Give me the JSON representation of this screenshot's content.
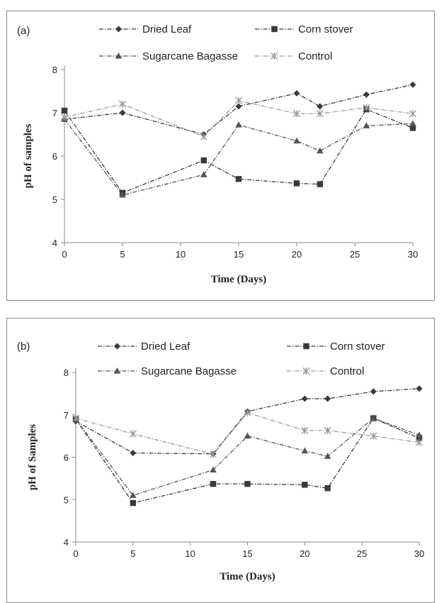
{
  "chart_data": [
    {
      "type": "line",
      "panel_label": "(a)",
      "xlabel": "Time (Days)",
      "ylabel": "pH of samples",
      "xlim": [
        0,
        30
      ],
      "ylim": [
        4,
        8
      ],
      "xticks": [
        0,
        5,
        10,
        15,
        20,
        25,
        30
      ],
      "yticks": [
        4,
        5,
        6,
        7,
        8
      ],
      "legend_position": "top",
      "x": [
        0,
        5,
        12,
        15,
        20,
        22,
        26,
        30
      ],
      "series": [
        {
          "name": "Dried Leaf",
          "marker": "diamond",
          "color": "#3a3a3a",
          "values": [
            6.85,
            7.0,
            6.5,
            7.15,
            7.45,
            7.15,
            7.42,
            7.65
          ]
        },
        {
          "name": "Corn stover",
          "marker": "square",
          "color": "#3a3a3a",
          "values": [
            7.05,
            5.15,
            5.9,
            5.47,
            5.37,
            5.35,
            7.08,
            6.65
          ]
        },
        {
          "name": "Sugarcane Bagasse",
          "marker": "triangle",
          "color": "#555555",
          "values": [
            6.85,
            5.1,
            5.57,
            6.72,
            6.35,
            6.12,
            6.7,
            6.75
          ]
        },
        {
          "name": "Control",
          "marker": "star",
          "color": "#9a9a9a",
          "values": [
            6.9,
            7.2,
            6.45,
            7.28,
            6.98,
            6.98,
            7.12,
            6.98
          ]
        }
      ]
    },
    {
      "type": "line",
      "panel_label": "(b)",
      "xlabel": "Time (Days)",
      "ylabel": "pH of Samples",
      "xlim": [
        0,
        30
      ],
      "ylim": [
        4,
        8
      ],
      "xticks": [
        0,
        5,
        10,
        15,
        20,
        25,
        30
      ],
      "yticks": [
        4,
        5,
        6,
        7,
        8
      ],
      "legend_position": "top",
      "x": [
        0,
        5,
        12,
        15,
        20,
        22,
        26,
        30
      ],
      "series": [
        {
          "name": "Dried Leaf",
          "marker": "diamond",
          "color": "#3a3a3a",
          "values": [
            6.85,
            6.1,
            6.08,
            7.08,
            7.38,
            7.38,
            7.55,
            7.62
          ]
        },
        {
          "name": "Corn stover",
          "marker": "square",
          "color": "#3a3a3a",
          "values": [
            6.9,
            4.92,
            5.37,
            5.37,
            5.35,
            5.27,
            6.92,
            6.45
          ]
        },
        {
          "name": "Sugarcane Bagasse",
          "marker": "triangle",
          "color": "#555555",
          "values": [
            6.9,
            5.1,
            5.7,
            6.5,
            6.15,
            6.02,
            6.92,
            6.52
          ]
        },
        {
          "name": "Control",
          "marker": "star",
          "color": "#9a9a9a",
          "values": [
            6.92,
            6.55,
            6.07,
            7.05,
            6.63,
            6.63,
            6.5,
            6.35
          ]
        }
      ]
    }
  ]
}
